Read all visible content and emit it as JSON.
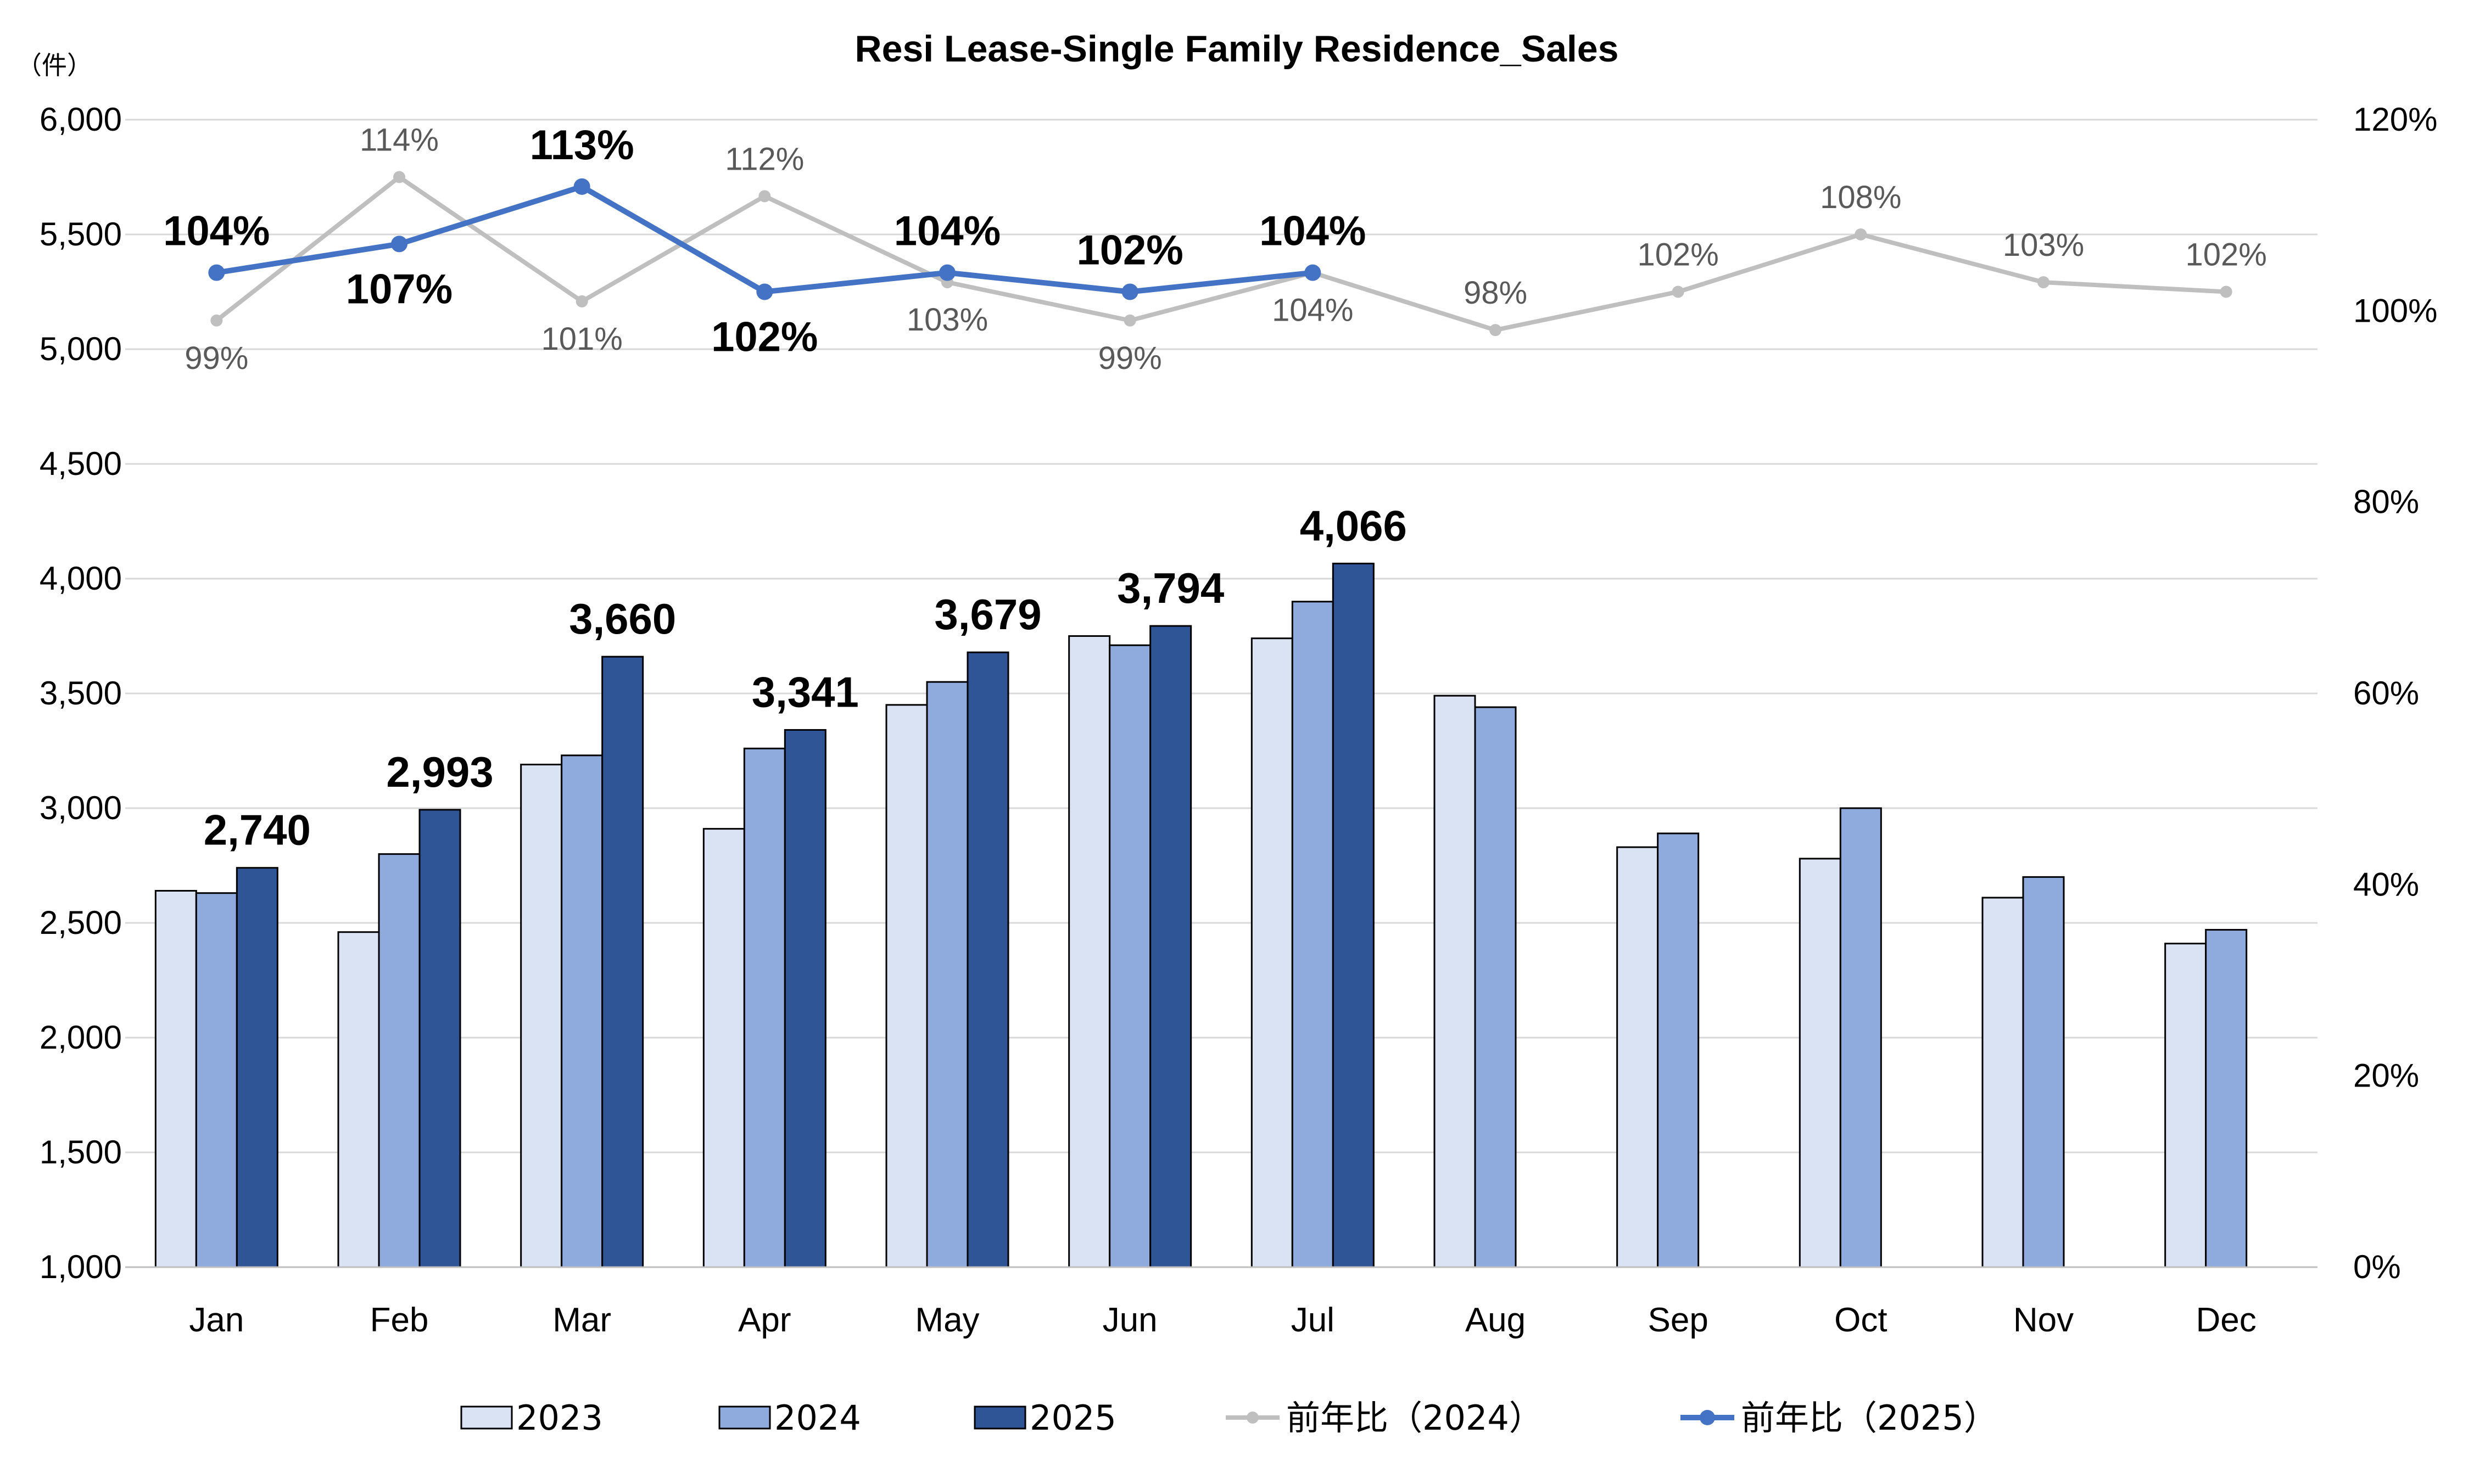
{
  "chart_data": {
    "type": "bar",
    "title": "Resi Lease-Single Family Residence_Sales",
    "y_unit_label": "（件）",
    "categories": [
      "Jan",
      "Feb",
      "Mar",
      "Apr",
      "May",
      "Jun",
      "Jul",
      "Aug",
      "Sep",
      "Oct",
      "Nov",
      "Dec"
    ],
    "ylim": [
      1000,
      6000
    ],
    "yticks": [
      "1,000",
      "1,500",
      "2,000",
      "2,500",
      "3,000",
      "3,500",
      "4,000",
      "4,500",
      "5,000",
      "5,500",
      "6,000"
    ],
    "y2lim": [
      0,
      120
    ],
    "y2ticks": [
      "0%",
      "20%",
      "40%",
      "60%",
      "80%",
      "100%",
      "120%"
    ],
    "grid": true,
    "legend_position": "bottom",
    "bar_series": [
      {
        "name": "2023",
        "color": "#dae3f3",
        "values": [
          2640,
          2460,
          3190,
          2910,
          3450,
          3750,
          3740,
          3490,
          2830,
          2780,
          2610,
          2410
        ],
        "labels": []
      },
      {
        "name": "2024",
        "color": "#8faadc",
        "values": [
          2630,
          2800,
          3230,
          3260,
          3550,
          3710,
          3900,
          3440,
          2890,
          3000,
          2700,
          2470
        ],
        "labels": []
      },
      {
        "name": "2025",
        "color": "#2f5597",
        "values": [
          2740,
          2993,
          3660,
          3341,
          3679,
          3794,
          4066,
          null,
          null,
          null,
          null,
          null
        ],
        "labels": [
          "2,740",
          "2,993",
          "3,660",
          "3,341",
          "3,679",
          "3,794",
          "4,066",
          "",
          "",
          "",
          "",
          ""
        ]
      }
    ],
    "line_series": [
      {
        "name": "前年比（2024）",
        "color": "#bfbfbf",
        "axis": "right",
        "values": [
          99,
          114,
          101,
          112,
          103,
          99,
          104,
          98,
          102,
          108,
          103,
          102
        ],
        "labels": [
          "99%",
          "114%",
          "101%",
          "112%",
          "103%",
          "99%",
          "104%",
          "98%",
          "102%",
          "108%",
          "103%",
          "102%"
        ]
      },
      {
        "name": "前年比（2025）",
        "color": "#4472c4",
        "axis": "right",
        "values": [
          104,
          107,
          113,
          102,
          104,
          102,
          104,
          null,
          null,
          null,
          null,
          null
        ],
        "labels": [
          "104%",
          "107%",
          "113%",
          "102%",
          "104%",
          "102%",
          "104%",
          "",
          "",
          "",
          "",
          ""
        ]
      }
    ]
  }
}
